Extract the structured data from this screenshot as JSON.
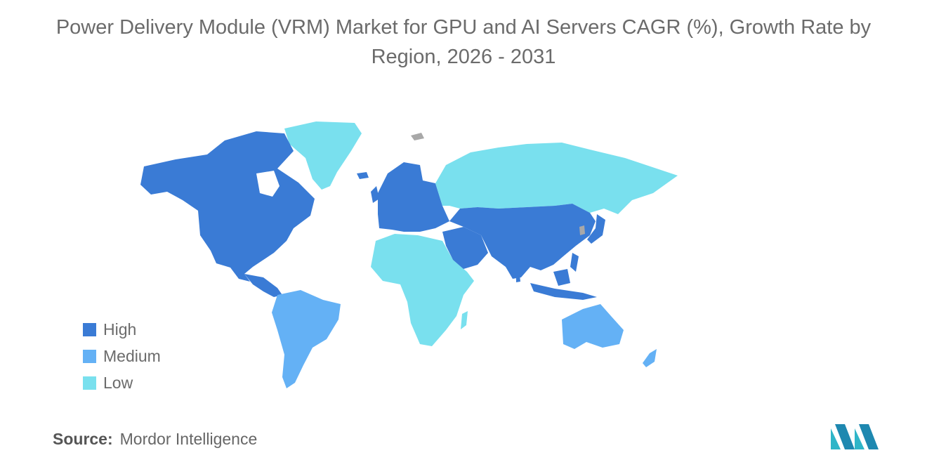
{
  "title": {
    "line1": "Power Delivery Module (VRM) Market for GPU and AI Servers CAGR (%), Growth Rate by",
    "line2": "Region, 2026 - 2031"
  },
  "legend": [
    {
      "label": "High",
      "color": "#3a7bd5"
    },
    {
      "label": "Medium",
      "color": "#64b1f5"
    },
    {
      "label": "Low",
      "color": "#79e0ee"
    }
  ],
  "source": {
    "label": "Source:",
    "value": "Mordor Intelligence"
  },
  "map": {
    "regions": [
      {
        "name": "North America",
        "level": "High"
      },
      {
        "name": "Europe",
        "level": "High"
      },
      {
        "name": "Asia-Pacific (excluding Australia)",
        "level": "High"
      },
      {
        "name": "Middle East",
        "level": "High"
      },
      {
        "name": "South America",
        "level": "Medium"
      },
      {
        "name": "Australia and New Zealand",
        "level": "Medium"
      },
      {
        "name": "Africa",
        "level": "Low"
      },
      {
        "name": "Russia",
        "level": "Low"
      },
      {
        "name": "Greenland",
        "level": "Low"
      }
    ]
  }
}
